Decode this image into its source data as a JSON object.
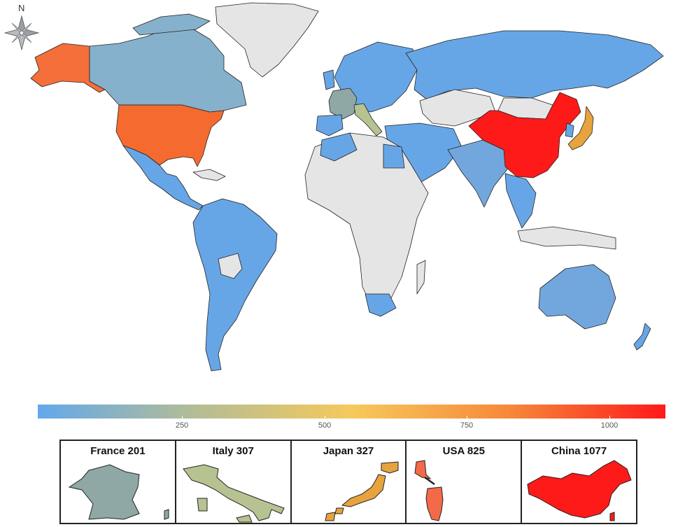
{
  "compass": {
    "label": "N",
    "icon": "compass-rose-icon"
  },
  "colors": {
    "no_data": "#e5e5e5",
    "low": "#67a6e6",
    "usa": "#f5692e",
    "alaska": "#f56f3a",
    "china": "#ff1a1a",
    "canada": "#86b1cc",
    "france": "#8fa8a6",
    "italy": "#b6c391",
    "japan": "#e6a33e"
  },
  "legend": {
    "gradient": [
      "#63a8ec",
      "#b3bd95",
      "#f6c95c",
      "#f6893a",
      "#ff1a1a"
    ],
    "ticks": [
      {
        "label": "250",
        "pos": 0.2297
      },
      {
        "label": "500",
        "pos": 0.4568
      },
      {
        "label": "750",
        "pos": 0.6839
      },
      {
        "label": "1000",
        "pos": 0.9109
      }
    ]
  },
  "panels": [
    {
      "title": "France 201",
      "color": "#8fa8a6",
      "shape": "france-outline-icon"
    },
    {
      "title": "Italy 307",
      "color": "#b6c391",
      "shape": "italy-outline-icon"
    },
    {
      "title": "Japan 327",
      "color": "#e6a33e",
      "shape": "japan-outline-icon"
    },
    {
      "title": "USA 825",
      "color": "#f26a4a",
      "shape": "usa-outline-icon"
    },
    {
      "title": "China 1077",
      "color": "#ff1a1a",
      "shape": "china-outline-icon"
    }
  ]
}
